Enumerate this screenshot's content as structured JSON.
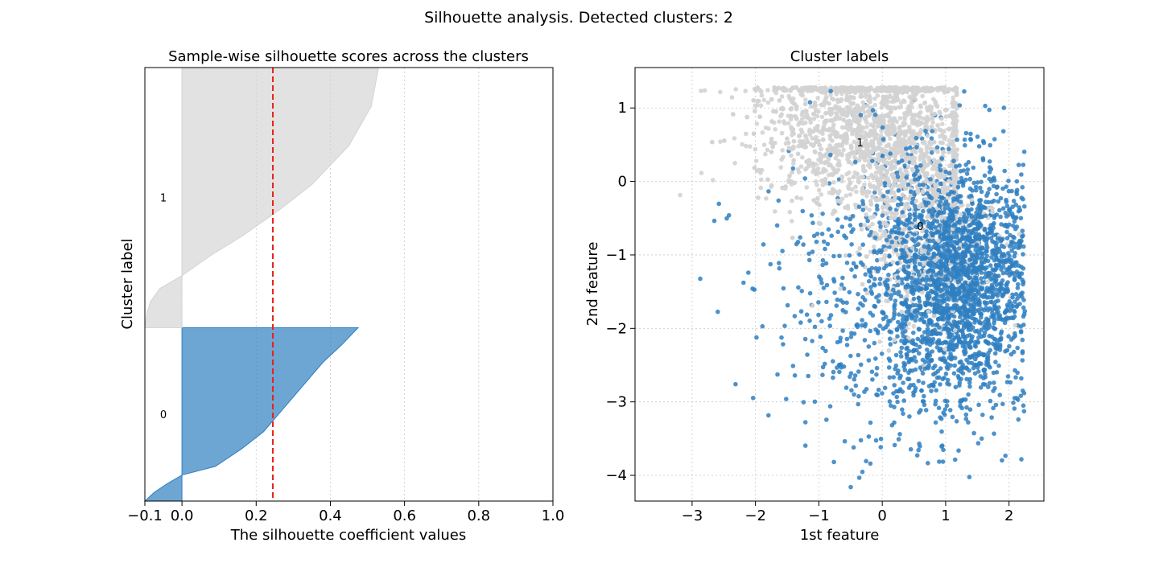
{
  "figure": {
    "suptitle": "Silhouette analysis. Detected clusters: 2"
  },
  "colors": {
    "cluster_0": "#2f7fc1",
    "cluster_1": "#d3d3d3",
    "mean_line": "#e8221b"
  },
  "chart_data": [
    {
      "type": "area",
      "title": "Sample-wise silhouette scores across the clusters",
      "xlabel": "The silhouette coefficient values",
      "ylabel": "Cluster label",
      "xlim": [
        -0.1,
        1.0
      ],
      "xticks": [
        -0.1,
        0.0,
        0.2,
        0.4,
        0.6,
        0.8,
        1.0
      ],
      "xtick_labels": [
        "−0.1",
        "0.0",
        "0.2",
        "0.4",
        "0.6",
        "0.8",
        "1.0"
      ],
      "yticks": [],
      "mean_silhouette": 0.245,
      "grid": "vertical dotted",
      "clusters": [
        {
          "label": "0",
          "color": "#2f7fc1",
          "size": 4000,
          "profile": [
            [
              0,
              0.475
            ],
            [
              0.1,
              0.43
            ],
            [
              0.2,
              0.38
            ],
            [
              0.3,
              0.34
            ],
            [
              0.4,
              0.3
            ],
            [
              0.5,
              0.26
            ],
            [
              0.6,
              0.22
            ],
            [
              0.7,
              0.16
            ],
            [
              0.8,
              0.09
            ],
            [
              0.85,
              0.0
            ],
            [
              0.9,
              -0.04
            ],
            [
              0.95,
              -0.075
            ],
            [
              1.0,
              -0.1
            ]
          ]
        },
        {
          "label": "1",
          "color": "#d3d3d3",
          "size": 6000,
          "profile": [
            [
              0,
              0.53
            ],
            [
              0.15,
              0.51
            ],
            [
              0.3,
              0.45
            ],
            [
              0.45,
              0.35
            ],
            [
              0.55,
              0.26
            ],
            [
              0.65,
              0.16
            ],
            [
              0.72,
              0.08
            ],
            [
              0.8,
              0.0
            ],
            [
              0.85,
              -0.06
            ],
            [
              0.9,
              -0.085
            ],
            [
              0.95,
              -0.095
            ],
            [
              1.0,
              -0.1
            ]
          ]
        }
      ]
    },
    {
      "type": "scatter",
      "title": "Cluster labels",
      "xlabel": "1st feature",
      "ylabel": "2nd feature",
      "xlim": [
        -3.9,
        2.55
      ],
      "ylim": [
        -4.35,
        1.55
      ],
      "xticks": [
        -3,
        -2,
        -1,
        0,
        1,
        2
      ],
      "xtick_labels": [
        "−3",
        "−2",
        "−1",
        "0",
        "1",
        "2"
      ],
      "yticks": [
        -4,
        -3,
        -2,
        -1,
        0,
        1
      ],
      "ytick_labels": [
        "−4",
        "−3",
        "−2",
        "−1",
        "0",
        "1"
      ],
      "grid": "both dotted",
      "centers": [
        {
          "label": "0",
          "x": 0.6,
          "y": -0.62
        },
        {
          "label": "1",
          "x": -0.35,
          "y": 0.52
        }
      ],
      "series": [
        {
          "label": "0",
          "color": "#2f7fc1",
          "n_points": 2600
        },
        {
          "label": "1",
          "color": "#d3d3d3",
          "n_points": 2600
        }
      ]
    }
  ]
}
